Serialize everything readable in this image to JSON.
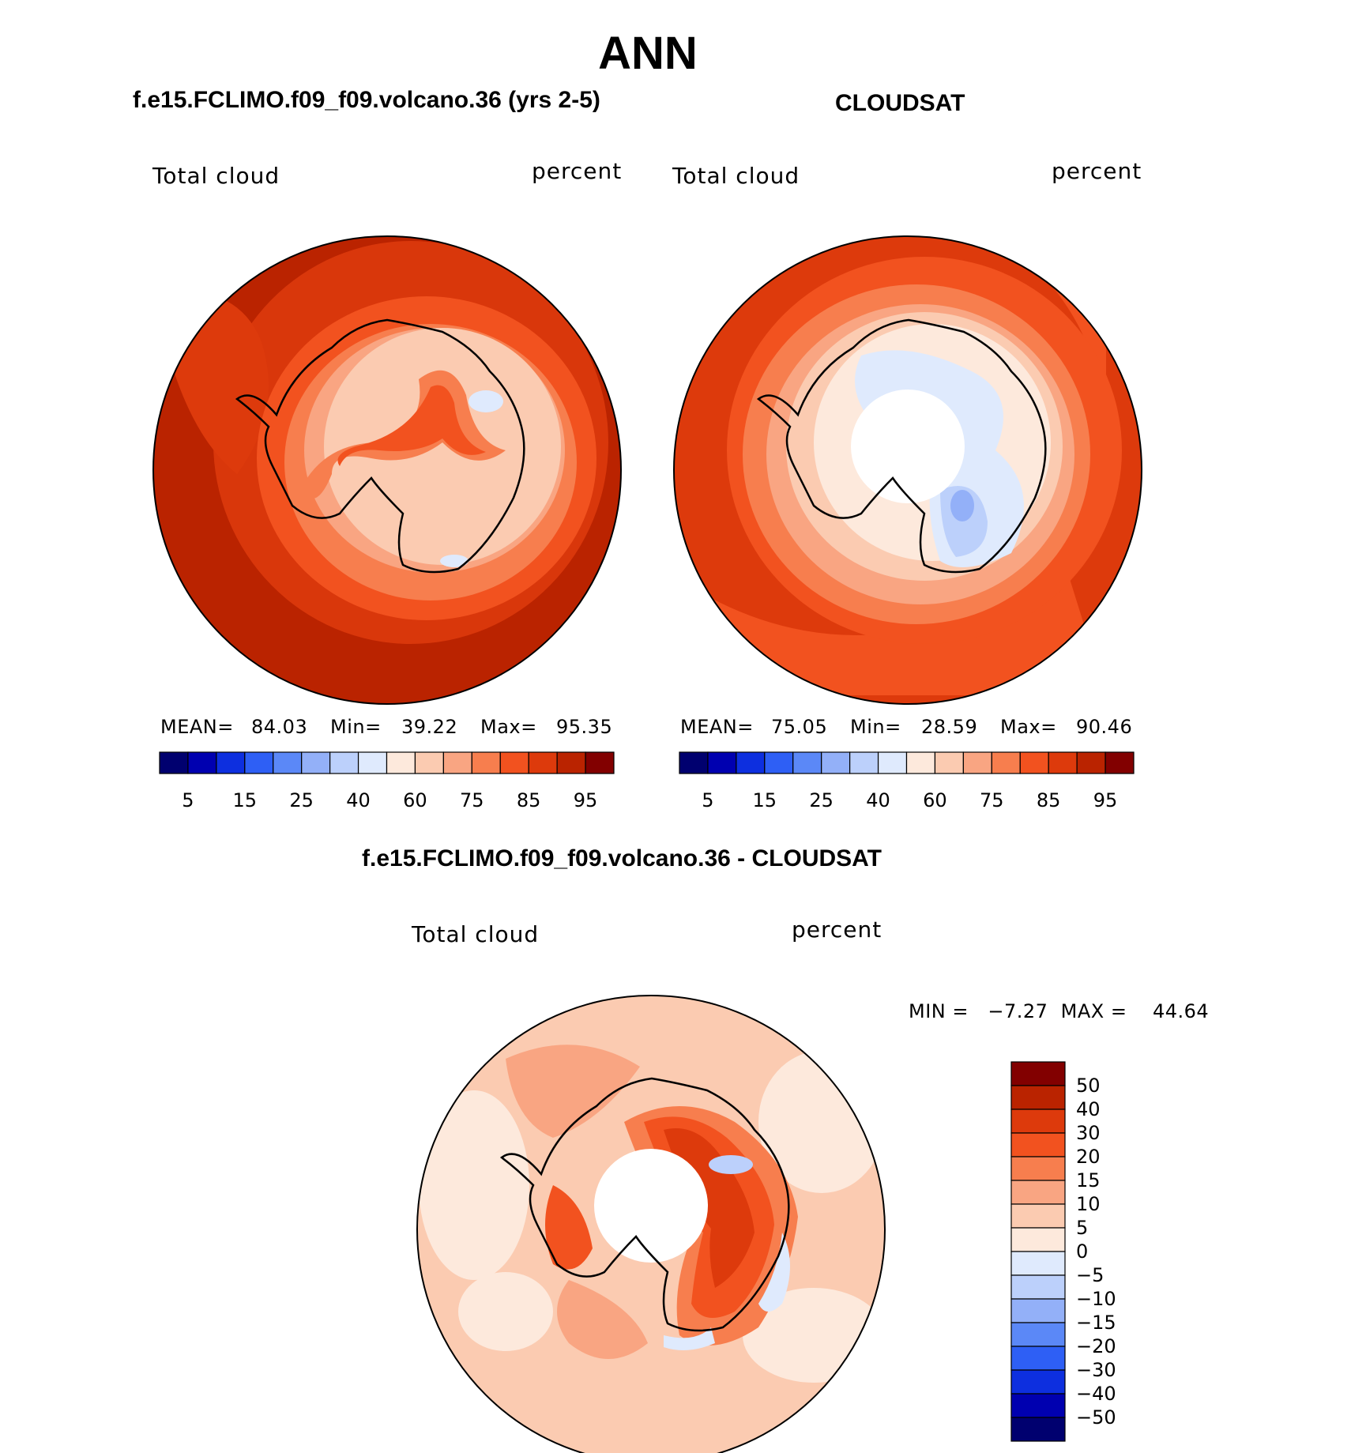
{
  "title": "ANN",
  "colors": {
    "seq": [
      "#00006f",
      "#0000b0",
      "#0d2fdf",
      "#2e5ff5",
      "#5b88f7",
      "#93b0f8",
      "#bcd0fb",
      "#dfeafd",
      "#fde9dc",
      "#fbcbb1",
      "#f9a582",
      "#f77e4e",
      "#f2521f",
      "#dd3a0c",
      "#ba2300",
      "#820000"
    ],
    "diff": [
      "#00006f",
      "#0000b0",
      "#0d2fdf",
      "#2e5ff5",
      "#5b88f7",
      "#93b0f8",
      "#bcd0fb",
      "#dfeafd",
      "#fde9dc",
      "#fbcbb1",
      "#f9a582",
      "#f77e4e",
      "#f2521f",
      "#dd3a0c",
      "#ba2300",
      "#820000"
    ]
  },
  "panel_left": {
    "subtitle": "f.e15.FCLIMO.f09_f09.volcano.36 (yrs 2-5)",
    "variable": "Total cloud",
    "units": "percent",
    "mean_label": "MEAN=",
    "mean": "84.03",
    "min_label": "Min=",
    "min": "39.22",
    "max_label": "Max=",
    "max": "95.35"
  },
  "panel_right": {
    "subtitle": "CLOUDSAT",
    "variable": "Total cloud",
    "units": "percent",
    "mean_label": "MEAN=",
    "mean": "75.05",
    "min_label": "Min=",
    "min": "28.59",
    "max_label": "Max=",
    "max": "90.46"
  },
  "panel_diff": {
    "subtitle": "f.e15.FCLIMO.f09_f09.volcano.36 - CLOUDSAT",
    "variable": "Total cloud",
    "units": "percent",
    "range_text": "MIN =   −7.27  MAX =    44.64"
  },
  "chart_data": [
    {
      "type": "heatmap",
      "projection": "south-polar-stereographic",
      "title": "f.e15.FCLIMO.f09_f09.volcano.36 (yrs 2-5)",
      "variable": "Total cloud",
      "units": "percent",
      "mean": 84.03,
      "min": 39.22,
      "max": 95.35,
      "colorbar_levels": [
        5,
        10,
        15,
        20,
        25,
        30,
        40,
        50,
        60,
        70,
        75,
        80,
        85,
        90,
        95
      ],
      "colorbar_tick_labels": [
        "5",
        "15",
        "25",
        "40",
        "60",
        "75",
        "85",
        "95"
      ]
    },
    {
      "type": "heatmap",
      "projection": "south-polar-stereographic",
      "title": "CLOUDSAT",
      "variable": "Total cloud",
      "units": "percent",
      "mean": 75.05,
      "min": 28.59,
      "max": 90.46,
      "colorbar_levels": [
        5,
        10,
        15,
        20,
        25,
        30,
        40,
        50,
        60,
        70,
        75,
        80,
        85,
        90,
        95
      ],
      "colorbar_tick_labels": [
        "5",
        "15",
        "25",
        "40",
        "60",
        "75",
        "85",
        "95"
      ]
    },
    {
      "type": "heatmap",
      "projection": "south-polar-stereographic",
      "title": "f.e15.FCLIMO.f09_f09.volcano.36 - CLOUDSAT",
      "variable": "Total cloud",
      "units": "percent",
      "min": -7.27,
      "max": 44.64,
      "colorbar_levels": [
        50,
        40,
        30,
        20,
        15,
        10,
        5,
        0,
        -5,
        -10,
        -15,
        -20,
        -30,
        -40,
        -50
      ],
      "colorbar_tick_labels": [
        "50",
        "40",
        "30",
        "20",
        "15",
        "10",
        "5",
        "0",
        "−5",
        "−10",
        "−15",
        "−20",
        "−30",
        "−40",
        "−50"
      ]
    }
  ]
}
